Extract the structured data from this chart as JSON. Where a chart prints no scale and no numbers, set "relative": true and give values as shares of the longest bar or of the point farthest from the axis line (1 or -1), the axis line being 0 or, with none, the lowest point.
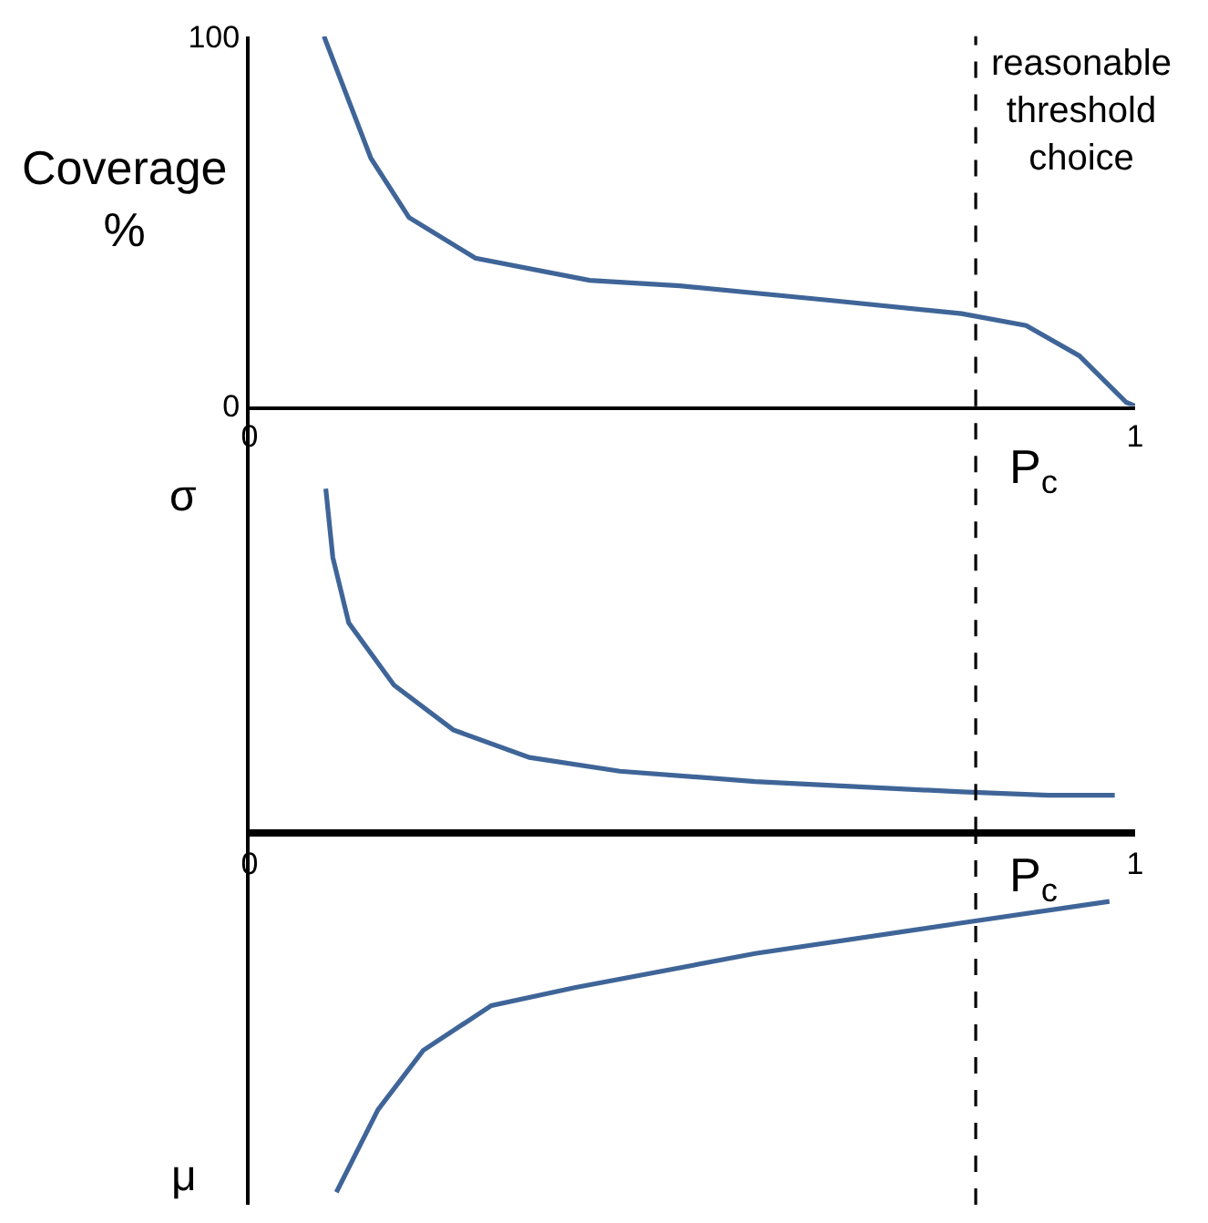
{
  "chart_data": [
    {
      "type": "line",
      "ylabel": "Coverage\n%",
      "color": "#3f6598",
      "x": [
        0.084,
        0.137,
        0.18,
        0.255,
        0.384,
        0.486,
        0.655,
        0.804,
        0.877,
        0.937,
        0.99,
        1.0
      ],
      "values": [
        100,
        67,
        51,
        40,
        34,
        32.5,
        28.6,
        25,
        21.8,
        13.6,
        1,
        0
      ],
      "xlim": [
        0,
        1
      ],
      "xticks": [
        0,
        1
      ],
      "ylim": [
        0,
        100
      ],
      "yticks": [
        0,
        100
      ],
      "ref_lines": [
        {
          "axis": "x",
          "value": 0.82,
          "label": "P$_{c}$",
          "line_style": "dashed",
          "color": "#000000"
        }
      ],
      "annotations": [
        "reasonable\nthreshold\nchoice"
      ]
    },
    {
      "type": "line",
      "ylabel": "σ",
      "color": "#3f6598",
      "relative": true,
      "tick_labels": "x",
      "x": [
        0.086,
        0.094,
        0.112,
        0.163,
        0.23,
        0.316,
        0.418,
        0.571,
        0.804,
        0.902,
        0.977
      ],
      "values": [
        1.0,
        0.8,
        0.61,
        0.43,
        0.3,
        0.22,
        0.18,
        0.15,
        0.12,
        0.11,
        0.11
      ],
      "xlim": [
        0,
        1
      ],
      "xticks": [
        0,
        1
      ],
      "ref_lines": [
        {
          "axis": "x",
          "value": 0.82,
          "label": "P$_{c}$",
          "line_style": "dashed",
          "color": "#000000"
        }
      ]
    },
    {
      "type": "line",
      "ylabel": "μ",
      "color": "#3f6598",
      "relative": true,
      "tick_labels": false,
      "x": [
        0.098,
        0.145,
        0.196,
        0.273,
        0.367,
        0.571,
        0.804,
        0.971
      ],
      "values": [
        -1.0,
        -0.77,
        -0.605,
        -0.48,
        -0.43,
        -0.335,
        -0.25,
        -0.19
      ],
      "xlim": [
        0,
        1
      ],
      "ref_lines": [
        {
          "axis": "x",
          "value": 0.82,
          "line_style": "dashed",
          "color": "#000000"
        }
      ]
    }
  ]
}
